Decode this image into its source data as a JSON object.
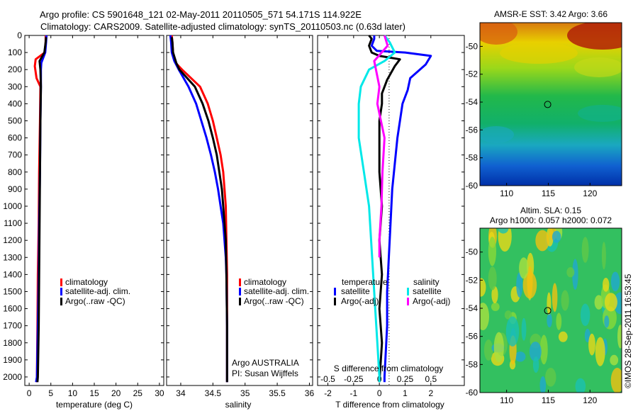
{
  "header": {
    "title_line1": "Argo profile: CS 5901648_121 02-May-2011 20110505_571 54.171S 114.922E",
    "title_line2": "Climatology: CARS2009. Satellite-adjusted climatology: synTS_20110503.nc (0.63d later)"
  },
  "colors": {
    "climatology": "#ff0000",
    "satellite": "#0000ff",
    "argo": "#000000",
    "salinity_satellite": "#00e8e8",
    "salinity_argo": "#ff00ff"
  },
  "chart_data": [
    {
      "type": "line",
      "id": "temperature",
      "xlabel": "temperature (deg C)",
      "ylabel": "",
      "xlim": [
        -1,
        31
      ],
      "ylim": [
        2050,
        0
      ],
      "xticks": [
        0,
        5,
        10,
        15,
        20,
        25,
        30
      ],
      "yticks": [
        0,
        100,
        200,
        300,
        400,
        500,
        600,
        700,
        800,
        900,
        1000,
        1100,
        1200,
        1300,
        1400,
        1500,
        1600,
        1700,
        1800,
        1900,
        2000
      ],
      "legend": [
        "climatology",
        "satellite-adj. clim.",
        "Argo(..raw -QC)"
      ],
      "series": [
        {
          "name": "climatology",
          "color": "#ff0000",
          "x": [
            3.8,
            3.8,
            3.6,
            1.5,
            1.3,
            1.7,
            2.6,
            2.5,
            2.3,
            2.2,
            2.0,
            1.9,
            1.8,
            1.7
          ],
          "y": [
            0,
            40,
            100,
            140,
            180,
            250,
            300,
            500,
            800,
            1100,
            1400,
            1700,
            2000,
            2030
          ]
        },
        {
          "name": "satellite-adj. clim.",
          "color": "#0000ff",
          "x": [
            4.0,
            3.9,
            3.7,
            2.8,
            2.7,
            2.7,
            2.6,
            2.5,
            2.3,
            2.2,
            2.0,
            1.8,
            1.6
          ],
          "y": [
            0,
            40,
            100,
            160,
            200,
            300,
            500,
            800,
            1100,
            1400,
            1700,
            2000,
            2030
          ]
        },
        {
          "name": "Argo(..raw -QC)",
          "color": "#000000",
          "x": [
            3.9,
            3.8,
            3.5,
            2.4,
            2.6,
            2.7,
            2.6,
            2.5,
            2.4,
            2.3,
            2.2,
            2.0,
            1.9
          ],
          "y": [
            10,
            40,
            100,
            150,
            200,
            300,
            500,
            800,
            1100,
            1400,
            1700,
            2000,
            2030
          ]
        }
      ]
    },
    {
      "type": "line",
      "id": "salinity",
      "xlabel": "salinity",
      "ylabel": "",
      "xlim": [
        33.78,
        36.05
      ],
      "ylim": [
        2050,
        0
      ],
      "xticks": [
        34,
        34.5,
        35,
        35.5,
        36
      ],
      "xtick_labels": [
        "34",
        "34.5",
        "35",
        "35.5",
        "36"
      ],
      "legend": [
        "climatology",
        "satellite-adj. clim.",
        "Argo(..raw -QC)"
      ],
      "annotation": [
        "Argo AUSTRALIA",
        "PI: Susan Wijffels"
      ],
      "series": [
        {
          "name": "climatology",
          "color": "#ff0000",
          "x": [
            33.86,
            33.87,
            33.88,
            33.92,
            34.02,
            34.3,
            34.42,
            34.5,
            34.56,
            34.62,
            34.66,
            34.68,
            34.7,
            34.71,
            34.72,
            34.72,
            34.72
          ],
          "y": [
            0,
            40,
            100,
            160,
            200,
            300,
            400,
            500,
            600,
            700,
            800,
            900,
            1000,
            1200,
            1400,
            1700,
            2030
          ]
        },
        {
          "name": "satellite-adj. clim.",
          "color": "#0000ff",
          "x": [
            33.84,
            33.85,
            33.86,
            33.9,
            33.97,
            34.12,
            34.24,
            34.32,
            34.4,
            34.47,
            34.53,
            34.58,
            34.62,
            34.66,
            34.68,
            34.7,
            34.71,
            34.72,
            34.72
          ],
          "y": [
            0,
            40,
            100,
            150,
            200,
            300,
            400,
            500,
            600,
            700,
            800,
            900,
            1000,
            1100,
            1200,
            1300,
            1400,
            1700,
            2030
          ]
        },
        {
          "name": "Argo(..raw -QC)",
          "color": "#000000",
          "x": [
            33.86,
            33.87,
            33.88,
            33.93,
            33.98,
            34.22,
            34.34,
            34.43,
            34.5,
            34.56,
            34.6,
            34.64,
            34.66,
            34.68,
            34.7,
            34.71,
            34.72,
            34.72
          ],
          "y": [
            10,
            40,
            100,
            160,
            200,
            300,
            400,
            500,
            600,
            700,
            800,
            900,
            1000,
            1100,
            1200,
            1400,
            1700,
            2030
          ]
        }
      ]
    },
    {
      "type": "line",
      "id": "difference",
      "xlabel": "T difference from climatology",
      "xlabel_top": "S difference from climatology",
      "xlim": [
        -2.4,
        3.3
      ],
      "ylim": [
        2050,
        0
      ],
      "xticks": [
        -2,
        -1,
        0,
        1,
        2
      ],
      "s_xticks": [
        -0.5,
        -0.25,
        0,
        0.25,
        0.5
      ],
      "s_xtick_labels": [
        "-0.5",
        "-0.25",
        "0",
        "0.25",
        "0.5"
      ],
      "legend_titles": [
        "temperature",
        "salinity"
      ],
      "legend": [
        "satellite",
        "Argo(-adj)",
        "satellite",
        "Argo(-adj)"
      ],
      "series": [
        {
          "name": "satellite",
          "group": "temperature",
          "color": "#0000ff",
          "x": [
            -0.2,
            -0.2,
            -0.3,
            -0.1,
            1.0,
            2.0,
            1.8,
            1.2,
            1.1,
            0.9,
            0.7,
            0.5,
            0.4,
            0.3,
            0.3,
            0.2,
            0.2
          ],
          "y": [
            0,
            20,
            60,
            90,
            100,
            120,
            170,
            250,
            320,
            400,
            600,
            900,
            1200,
            1500,
            1700,
            2000,
            2030
          ]
        },
        {
          "name": "Argo(-adj)",
          "group": "temperature",
          "color": "#000000",
          "x": [
            -0.4,
            -0.3,
            -0.4,
            -0.3,
            0.0,
            0.8,
            0.6,
            0.3,
            0.1,
            0.1,
            0.0,
            0.0,
            0.0,
            0.1,
            0.0,
            0.1,
            0.0,
            0.1,
            0.0
          ],
          "y": [
            0,
            20,
            60,
            100,
            120,
            140,
            180,
            260,
            340,
            400,
            500,
            600,
            800,
            1000,
            1200,
            1400,
            1600,
            1800,
            2030
          ]
        },
        {
          "name": "satellite",
          "group": "salinity",
          "color": "#00e8e8",
          "x": [
            0.05,
            0.1,
            0.15,
            0.05,
            -0.1,
            -0.18,
            -0.2,
            -0.2,
            -0.15,
            -0.1,
            -0.08,
            -0.06,
            -0.04,
            -0.02,
            0.0,
            0.0
          ],
          "y": [
            0,
            40,
            100,
            150,
            200,
            300,
            400,
            600,
            800,
            1000,
            1200,
            1400,
            1600,
            1800,
            2000,
            2030
          ]
        },
        {
          "name": "Argo(-adj)",
          "group": "salinity",
          "color": "#ff00ff",
          "x": [
            0.05,
            0.08,
            -0.05,
            0.0,
            -0.02,
            0.05,
            0.03,
            0.02,
            0.0,
            0.0
          ],
          "y": [
            0,
            60,
            150,
            300,
            400,
            600,
            800,
            1000,
            1200,
            1300
          ]
        }
      ]
    },
    {
      "type": "heatmap",
      "id": "sst_map",
      "title": "AMSR-E SST: 3.42 Argo: 3.66",
      "xlim": [
        106.8,
        123.8
      ],
      "ylim": [
        -60,
        -48.3
      ],
      "xticks": [
        110,
        115,
        120
      ],
      "yticks": [
        -50,
        -52,
        -54,
        -56,
        -58,
        -60
      ],
      "marker": {
        "lon": 114.922,
        "lat": -54.171
      }
    },
    {
      "type": "heatmap",
      "id": "sla_map",
      "title_line1": "Altim. SLA: 0.15",
      "title_line2": "Argo h1000: 0.057 h2000: 0.072",
      "xlim": [
        106.8,
        123.8
      ],
      "ylim": [
        -60,
        -48.3
      ],
      "xticks": [
        110,
        115,
        120
      ],
      "yticks": [
        -50,
        -52,
        -54,
        -56,
        -58,
        -60
      ],
      "marker": {
        "lon": 114.922,
        "lat": -54.171
      }
    }
  ],
  "footer": {
    "timestamp": "©IMOS 28-Sep-2011 16:53:45"
  }
}
